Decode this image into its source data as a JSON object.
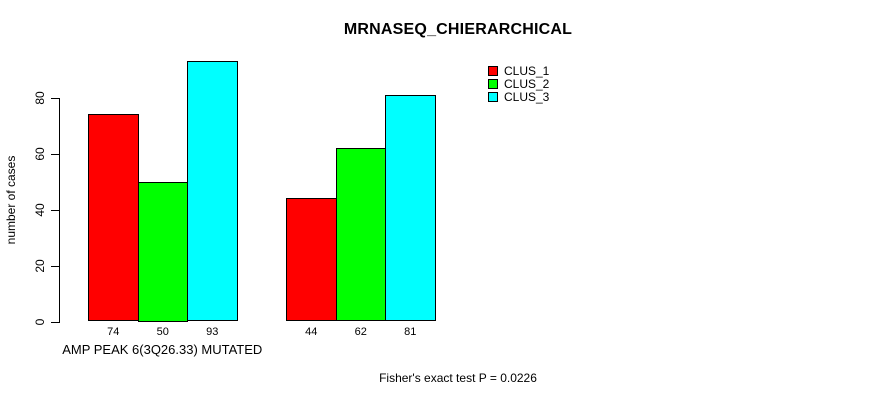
{
  "title": "MRNASEQ_CHIERARCHICAL",
  "chart_data": {
    "type": "bar",
    "grouped": true,
    "title": "MRNASEQ_CHIERARCHICAL",
    "ylabel": "number of cases",
    "categories": [
      "AMP PEAK  6(3Q26.33) MUTATED",
      ""
    ],
    "series": [
      {
        "name": "CLUS_1",
        "color": "#ff0000",
        "values": [
          74,
          44
        ]
      },
      {
        "name": "CLUS_2",
        "color": "#00ff00",
        "values": [
          50,
          62
        ]
      },
      {
        "name": "CLUS_3",
        "color": "#00ffff",
        "values": [
          93,
          81
        ]
      }
    ],
    "show_value_labels": true,
    "ylim": [
      0,
      80
    ],
    "yticks": [
      0,
      20,
      40,
      60,
      80
    ],
    "grid": false,
    "legend_position": "top-right",
    "legend_entries": [
      {
        "label": "CLUS_1",
        "color": "#ff0000"
      },
      {
        "label": "CLUS_2",
        "color": "#00ff00"
      },
      {
        "label": "CLUS_3",
        "color": "#00ffff"
      }
    ]
  },
  "footer": {
    "stat_text": "Fisher's exact test P = 0.0226"
  },
  "colors": {
    "background": "#ffffff",
    "text": "#000000",
    "bar_border": "#000000",
    "axis": "#000000"
  }
}
